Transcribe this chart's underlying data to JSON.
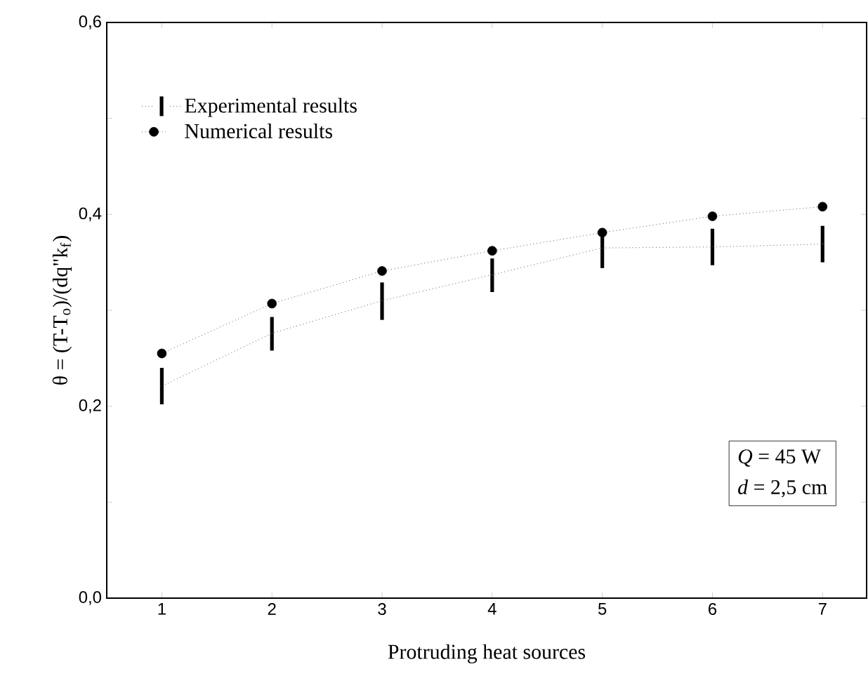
{
  "chart_data": {
    "type": "line",
    "xlabel": "Protruding heat sources",
    "ylabel": "θ = (T-T$_{o}$)/(dq\"k$_{f}$)",
    "x": [
      1,
      2,
      3,
      4,
      5,
      6,
      7
    ],
    "series": [
      {
        "name": "Experimental results",
        "color": "#000000",
        "line_style": "dotted",
        "marker": "none",
        "values": [
          0.221,
          0.276,
          0.31,
          0.337,
          0.365,
          0.366,
          0.369
        ],
        "errors": [
          [
            0.202,
            0.24
          ],
          [
            0.258,
            0.293
          ],
          [
            0.29,
            0.329
          ],
          [
            0.319,
            0.354
          ],
          [
            0.344,
            0.385
          ],
          [
            0.347,
            0.385
          ],
          [
            0.35,
            0.388
          ]
        ]
      },
      {
        "name": "Numerical results",
        "color": "#000000",
        "line_style": "dotted",
        "marker": "circle",
        "values": [
          0.255,
          0.307,
          0.341,
          0.362,
          0.381,
          0.398,
          0.408
        ]
      }
    ],
    "xlim": [
      0.5,
      7.4
    ],
    "xticks": [
      1,
      2,
      3,
      4,
      5,
      6,
      7
    ],
    "ylim": [
      0,
      0.6
    ],
    "yticks": [
      {
        "value": 0,
        "label": "0,0"
      },
      {
        "value": 0.1,
        "label": null
      },
      {
        "value": 0.2,
        "label": "0,2"
      },
      {
        "value": 0.3,
        "label": null
      },
      {
        "value": 0.4,
        "label": "0,4"
      },
      {
        "value": 0.5,
        "label": null
      },
      {
        "value": 0.6,
        "label": "0,6"
      }
    ],
    "legend": "top left",
    "grid": false,
    "annotations": [
      "*Q* = 45 W",
      "*d* = 2,5 cm"
    ]
  }
}
